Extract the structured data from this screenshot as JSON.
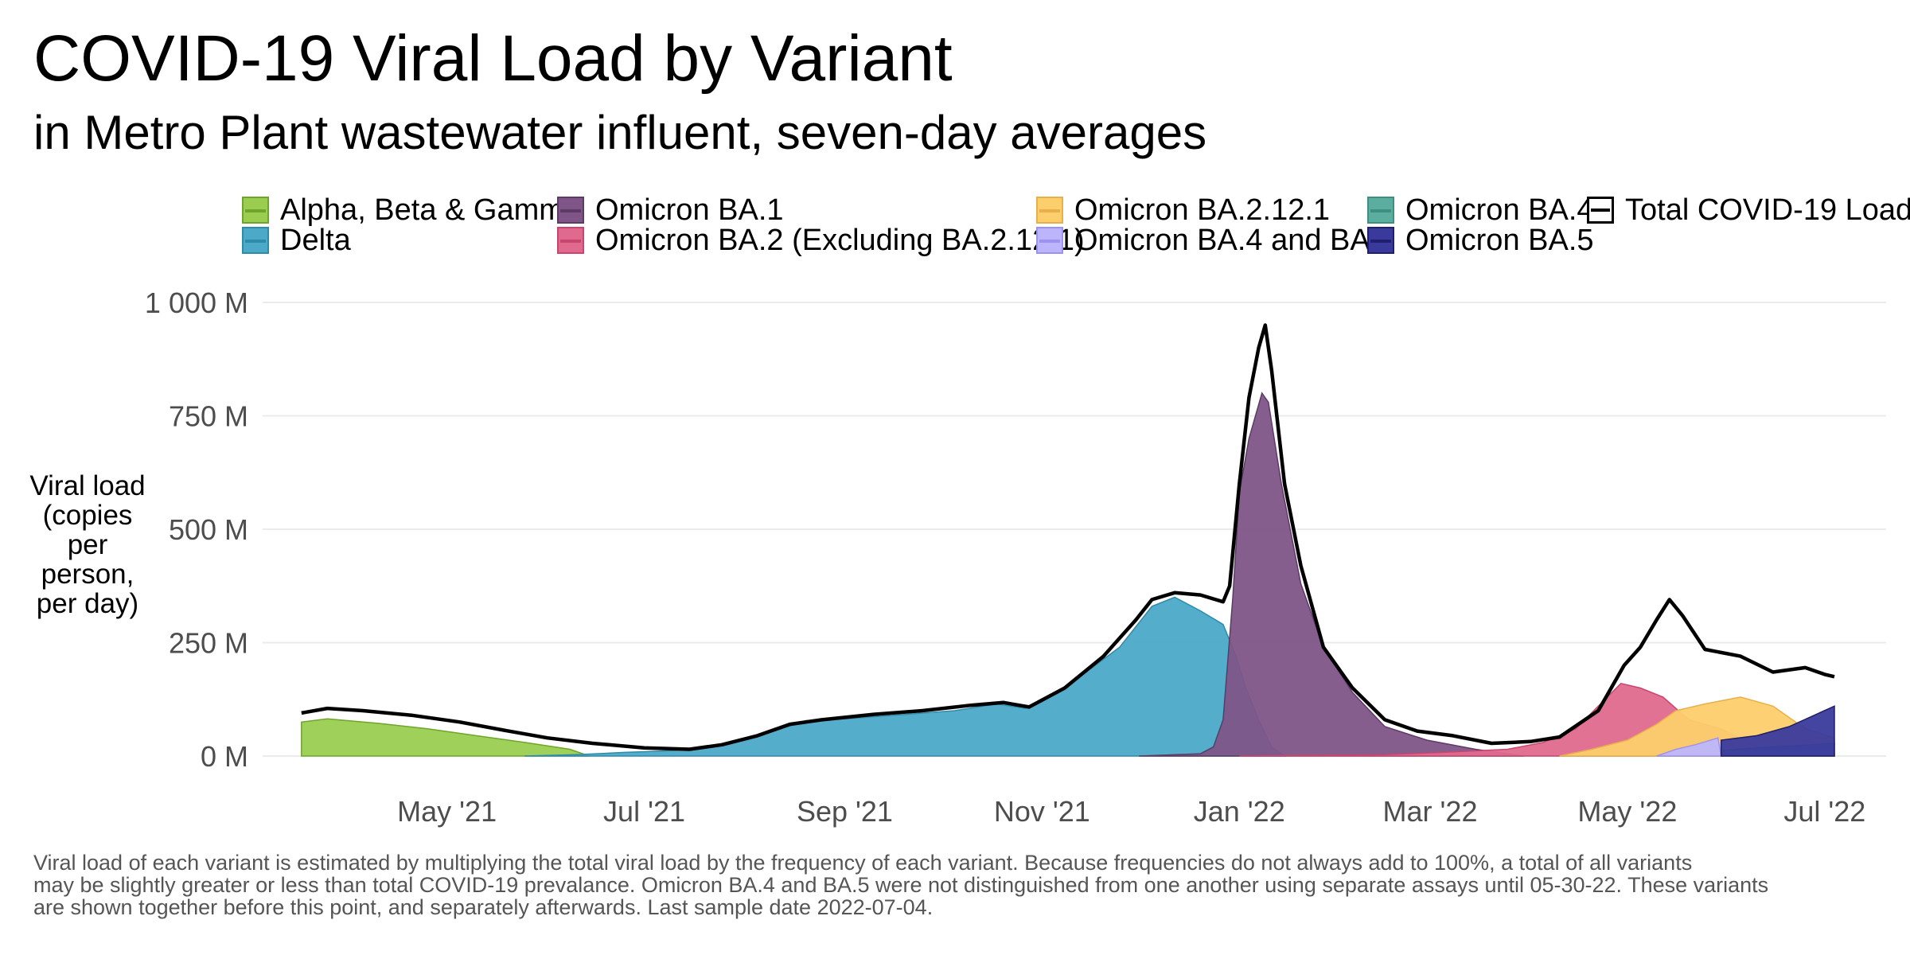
{
  "title": "COVID-19 Viral Load by Variant",
  "subtitle": "in Metro Plant wastewater influent, seven-day averages",
  "legend": [
    {
      "key": "alpha_beta_gamma",
      "label": "Alpha, Beta & Gamma",
      "fill": "#9ACD50",
      "line": "#6FA52C",
      "type": "area"
    },
    {
      "key": "omicron_ba1",
      "label": "Omicron BA.1",
      "fill": "#7F5588",
      "line": "#5C3B66",
      "type": "area"
    },
    {
      "key": "omicron_ba2121",
      "label": "Omicron BA.2.12.1",
      "fill": "#FDCF6C",
      "line": "#E8B04A",
      "type": "area"
    },
    {
      "key": "omicron_ba4",
      "label": "Omicron BA.4",
      "fill": "#5BAE9F",
      "line": "#3D8F80",
      "type": "area"
    },
    {
      "key": "total",
      "label": "Total COVID-19 Load",
      "fill": "#FFFFFF",
      "line": "#000000",
      "type": "line"
    },
    {
      "key": "delta",
      "label": "Delta",
      "fill": "#4BAAC8",
      "line": "#2F8BAA",
      "type": "area"
    },
    {
      "key": "omicron_ba2",
      "label": "Omicron BA.2 (Excluding BA.2.12.1)",
      "fill": "#E06A8E",
      "line": "#C8456F",
      "type": "area"
    },
    {
      "key": "omicron_ba4_ba5",
      "label": "Omicron BA.4 and BA.5",
      "fill": "#BDB5FC",
      "line": "#9C93F0",
      "type": "area"
    },
    {
      "key": "omicron_ba5",
      "label": "Omicron BA.5",
      "fill": "#3A3A9C",
      "line": "#1F1F6E",
      "type": "area"
    }
  ],
  "footnote": [
    "Viral load of each variant is estimated by multiplying the total viral load by the frequency of each variant. Because frequencies do not always add to 100%, a total of all variants",
    "may be slightly greater or less than total COVID-19 prevalance. Omicron BA.4 and BA.5 were not distinguished from one another using separate assays until 05-30-22. These variants",
    "are shown together before this point, and separately afterwards. Last sample date 2022-07-04."
  ],
  "chart_data": {
    "type": "area",
    "ylabel": "Viral load\n(copies\nper\nperson,\nper day)",
    "xlabel": "",
    "ylim": [
      0,
      1000
    ],
    "xlim": [
      "2021-03-05",
      "2022-07-20"
    ],
    "grid": true,
    "legend_position": "top",
    "y_ticks": [
      {
        "value": 0,
        "label": "0 M"
      },
      {
        "value": 250,
        "label": "250 M"
      },
      {
        "value": 500,
        "label": "500 M"
      },
      {
        "value": 750,
        "label": "750 M"
      },
      {
        "value": 1000,
        "label": "1 000 M"
      }
    ],
    "x_ticks": [
      {
        "date": "2021-05-01",
        "label": "May '21"
      },
      {
        "date": "2021-07-01",
        "label": "Jul '21"
      },
      {
        "date": "2021-09-01",
        "label": "Sep '21"
      },
      {
        "date": "2021-11-01",
        "label": "Nov '21"
      },
      {
        "date": "2022-01-01",
        "label": "Jan '22"
      },
      {
        "date": "2022-03-01",
        "label": "Mar '22"
      },
      {
        "date": "2022-05-01",
        "label": "May '22"
      },
      {
        "date": "2022-07-01",
        "label": "Jul '22"
      }
    ],
    "series": [
      {
        "key": "alpha_beta_gamma",
        "name": "Alpha, Beta & Gamma",
        "color": "#9ACD50",
        "points": [
          [
            "2021-03-17",
            75
          ],
          [
            "2021-03-25",
            82
          ],
          [
            "2021-04-10",
            72
          ],
          [
            "2021-04-25",
            60
          ],
          [
            "2021-05-10",
            45
          ],
          [
            "2021-05-25",
            30
          ],
          [
            "2021-06-08",
            15
          ],
          [
            "2021-06-14",
            0
          ]
        ]
      },
      {
        "key": "delta",
        "name": "Delta",
        "color": "#4BAAC8",
        "points": [
          [
            "2021-05-25",
            0
          ],
          [
            "2021-06-10",
            3
          ],
          [
            "2021-06-25",
            8
          ],
          [
            "2021-07-10",
            12
          ],
          [
            "2021-07-25",
            25
          ],
          [
            "2021-08-08",
            50
          ],
          [
            "2021-08-20",
            78
          ],
          [
            "2021-09-01",
            82
          ],
          [
            "2021-09-20",
            92
          ],
          [
            "2021-10-05",
            100
          ],
          [
            "2021-10-18",
            115
          ],
          [
            "2021-10-27",
            105
          ],
          [
            "2021-11-10",
            160
          ],
          [
            "2021-11-25",
            240
          ],
          [
            "2021-12-05",
            330
          ],
          [
            "2021-12-12",
            350
          ],
          [
            "2021-12-20",
            320
          ],
          [
            "2021-12-27",
            290
          ],
          [
            "2021-12-31",
            220
          ],
          [
            "2022-01-03",
            150
          ],
          [
            "2022-01-07",
            80
          ],
          [
            "2022-01-11",
            20
          ],
          [
            "2022-01-15",
            0
          ]
        ]
      },
      {
        "key": "omicron_ba1",
        "name": "Omicron BA.1",
        "color": "#7F5588",
        "points": [
          [
            "2021-12-01",
            0
          ],
          [
            "2021-12-20",
            5
          ],
          [
            "2021-12-24",
            20
          ],
          [
            "2021-12-27",
            80
          ],
          [
            "2021-12-30",
            350
          ],
          [
            "2022-01-01",
            580
          ],
          [
            "2022-01-04",
            700
          ],
          [
            "2022-01-08",
            800
          ],
          [
            "2022-01-10",
            780
          ],
          [
            "2022-01-14",
            600
          ],
          [
            "2022-01-20",
            380
          ],
          [
            "2022-01-27",
            240
          ],
          [
            "2022-02-05",
            140
          ],
          [
            "2022-02-15",
            65
          ],
          [
            "2022-02-28",
            35
          ],
          [
            "2022-03-15",
            15
          ],
          [
            "2022-03-30",
            0
          ]
        ]
      },
      {
        "key": "omicron_ba2",
        "name": "Omicron BA.2 (Excluding BA.2.12.1)",
        "color": "#E06A8E",
        "points": [
          [
            "2022-01-01",
            0
          ],
          [
            "2022-02-15",
            3
          ],
          [
            "2022-03-05",
            8
          ],
          [
            "2022-03-25",
            15
          ],
          [
            "2022-04-05",
            30
          ],
          [
            "2022-04-15",
            60
          ],
          [
            "2022-04-22",
            110
          ],
          [
            "2022-04-29",
            160
          ],
          [
            "2022-05-05",
            150
          ],
          [
            "2022-05-12",
            130
          ],
          [
            "2022-05-20",
            80
          ],
          [
            "2022-05-30",
            60
          ],
          [
            "2022-06-10",
            20
          ],
          [
            "2022-06-20",
            8
          ],
          [
            "2022-07-04",
            5
          ]
        ]
      },
      {
        "key": "omicron_ba2121",
        "name": "Omicron BA.2.12.1",
        "color": "#FDCF6C",
        "points": [
          [
            "2022-04-10",
            0
          ],
          [
            "2022-04-20",
            15
          ],
          [
            "2022-05-01",
            35
          ],
          [
            "2022-05-10",
            70
          ],
          [
            "2022-05-16",
            100
          ],
          [
            "2022-05-25",
            115
          ],
          [
            "2022-06-05",
            130
          ],
          [
            "2022-06-15",
            110
          ],
          [
            "2022-06-25",
            60
          ],
          [
            "2022-07-04",
            40
          ]
        ]
      },
      {
        "key": "omicron_ba4_ba5",
        "name": "Omicron BA.4 and BA.5",
        "color": "#BDB5FC",
        "points": [
          [
            "2022-05-10",
            0
          ],
          [
            "2022-05-16",
            15
          ],
          [
            "2022-05-22",
            25
          ],
          [
            "2022-05-29",
            40
          ],
          [
            "2022-05-30",
            0
          ]
        ]
      },
      {
        "key": "omicron_ba4",
        "name": "Omicron BA.4",
        "color": "#5BAE9F",
        "points": [
          [
            "2022-05-30",
            12
          ],
          [
            "2022-06-10",
            18
          ],
          [
            "2022-06-20",
            22
          ],
          [
            "2022-07-04",
            28
          ]
        ]
      },
      {
        "key": "omicron_ba5",
        "name": "Omicron BA.5",
        "color": "#3A3A9C",
        "points": [
          [
            "2022-05-30",
            35
          ],
          [
            "2022-06-10",
            45
          ],
          [
            "2022-06-20",
            65
          ],
          [
            "2022-07-04",
            110
          ]
        ]
      },
      {
        "key": "total",
        "name": "Total COVID-19 Load",
        "color": "#000000",
        "points": [
          [
            "2021-03-17",
            95
          ],
          [
            "2021-03-25",
            105
          ],
          [
            "2021-04-05",
            100
          ],
          [
            "2021-04-20",
            90
          ],
          [
            "2021-05-05",
            75
          ],
          [
            "2021-05-20",
            55
          ],
          [
            "2021-06-01",
            40
          ],
          [
            "2021-06-15",
            28
          ],
          [
            "2021-07-01",
            18
          ],
          [
            "2021-07-15",
            15
          ],
          [
            "2021-07-25",
            25
          ],
          [
            "2021-08-05",
            45
          ],
          [
            "2021-08-15",
            70
          ],
          [
            "2021-08-25",
            80
          ],
          [
            "2021-09-10",
            92
          ],
          [
            "2021-09-25",
            100
          ],
          [
            "2021-10-10",
            112
          ],
          [
            "2021-10-20",
            118
          ],
          [
            "2021-10-28",
            108
          ],
          [
            "2021-11-08",
            150
          ],
          [
            "2021-11-20",
            220
          ],
          [
            "2021-11-30",
            300
          ],
          [
            "2021-12-05",
            345
          ],
          [
            "2021-12-12",
            360
          ],
          [
            "2021-12-20",
            355
          ],
          [
            "2021-12-27",
            340
          ],
          [
            "2021-12-29",
            375
          ],
          [
            "2022-01-01",
            600
          ],
          [
            "2022-01-04",
            790
          ],
          [
            "2022-01-07",
            900
          ],
          [
            "2022-01-09",
            950
          ],
          [
            "2022-01-11",
            850
          ],
          [
            "2022-01-15",
            600
          ],
          [
            "2022-01-20",
            420
          ],
          [
            "2022-01-27",
            240
          ],
          [
            "2022-02-05",
            150
          ],
          [
            "2022-02-15",
            80
          ],
          [
            "2022-02-25",
            55
          ],
          [
            "2022-03-08",
            45
          ],
          [
            "2022-03-20",
            28
          ],
          [
            "2022-04-01",
            32
          ],
          [
            "2022-04-10",
            42
          ],
          [
            "2022-04-22",
            100
          ],
          [
            "2022-04-30",
            200
          ],
          [
            "2022-05-05",
            240
          ],
          [
            "2022-05-10",
            300
          ],
          [
            "2022-05-14",
            345
          ],
          [
            "2022-05-18",
            310
          ],
          [
            "2022-05-25",
            235
          ],
          [
            "2022-06-05",
            220
          ],
          [
            "2022-06-15",
            185
          ],
          [
            "2022-06-25",
            195
          ],
          [
            "2022-07-01",
            180
          ],
          [
            "2022-07-04",
            175
          ]
        ]
      }
    ]
  }
}
